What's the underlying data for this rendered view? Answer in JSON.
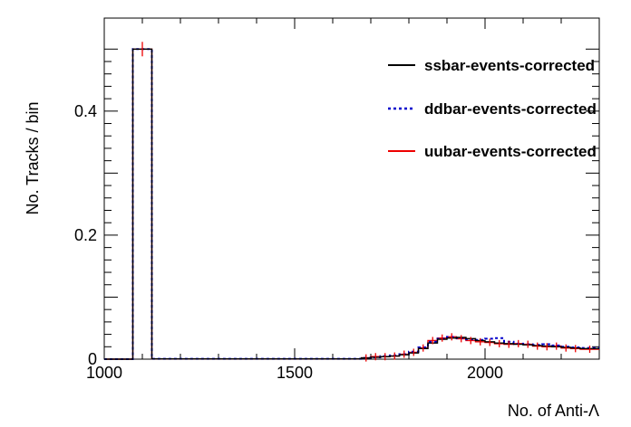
{
  "chart_data": {
    "type": "line",
    "drawstyle": "histogram-step",
    "title": "",
    "xlabel": "No. of Anti-Λ",
    "ylabel": "No. Tracks / bin",
    "xlim": [
      1000,
      2300
    ],
    "ylim": [
      0,
      0.55
    ],
    "xticks": [
      1000,
      1500,
      2000
    ],
    "xtick_labels": [
      "1000",
      "1500",
      "2000"
    ],
    "yticks": [
      0,
      0.2,
      0.4
    ],
    "ytick_labels": [
      "0",
      "0.2",
      "0.4"
    ],
    "grid": false,
    "legend_position": "top-right",
    "bin_edges": [
      1000,
      1075,
      1125,
      1675,
      1700,
      1725,
      1750,
      1775,
      1800,
      1825,
      1850,
      1875,
      1900,
      1925,
      1950,
      1975,
      2000,
      2025,
      2050,
      2075,
      2100,
      2125,
      2150,
      2175,
      2200,
      2225,
      2250,
      2300
    ],
    "series": [
      {
        "name": "ssbar-events-corrected",
        "color": "#000000",
        "linestyle": "solid",
        "values": [
          0,
          0.5,
          0.0005,
          0.002,
          0.003,
          0.004,
          0.005,
          0.007,
          0.01,
          0.017,
          0.026,
          0.032,
          0.034,
          0.035,
          0.033,
          0.03,
          0.028,
          0.026,
          0.025,
          0.024,
          0.023,
          0.022,
          0.021,
          0.02,
          0.019,
          0.018,
          0.017
        ]
      },
      {
        "name": "ddbar-events-corrected",
        "color": "#0000cc",
        "linestyle": "dotted",
        "values": [
          0,
          0.5,
          0.0005,
          0.002,
          0.003,
          0.005,
          0.006,
          0.008,
          0.012,
          0.019,
          0.028,
          0.033,
          0.036,
          0.034,
          0.032,
          0.031,
          0.033,
          0.034,
          0.028,
          0.025,
          0.024,
          0.023,
          0.024,
          0.022,
          0.02,
          0.019,
          0.018
        ]
      },
      {
        "name": "uubar-events-corrected",
        "color": "#ee0000",
        "linestyle": "solid",
        "values": [
          0,
          0.5,
          0.0005,
          0.002,
          0.004,
          0.004,
          0.005,
          0.008,
          0.011,
          0.018,
          0.03,
          0.034,
          0.036,
          0.033,
          0.03,
          0.028,
          0.027,
          0.025,
          0.024,
          0.025,
          0.024,
          0.021,
          0.02,
          0.021,
          0.018,
          0.017,
          0.016
        ]
      }
    ]
  }
}
